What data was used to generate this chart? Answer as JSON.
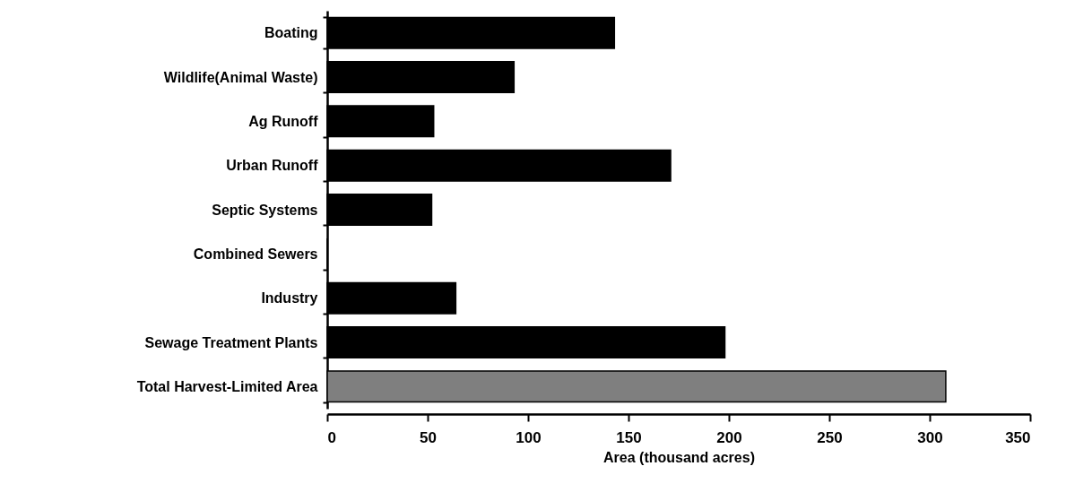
{
  "chart_data": {
    "type": "bar",
    "orientation": "horizontal",
    "xlabel": "Area (thousand acres)",
    "categories": [
      "Boating",
      "Wildlife(Animal  Waste)",
      "Ag Runoff",
      "Urban Runoff",
      "Septic Systems",
      "Combined Sewers",
      "Industry",
      "Sewage Treatment Plants",
      "Total Harvest-Limited Area"
    ],
    "values": [
      143,
      93,
      53,
      171,
      52,
      0,
      64,
      198,
      308
    ],
    "colors": [
      "#000000",
      "#000000",
      "#000000",
      "#000000",
      "#000000",
      "#000000",
      "#000000",
      "#000000",
      "#7f7f7f"
    ],
    "xlim": [
      0,
      350
    ],
    "xticks": [
      0,
      50,
      100,
      150,
      200,
      250,
      300,
      350
    ],
    "grid": false
  }
}
